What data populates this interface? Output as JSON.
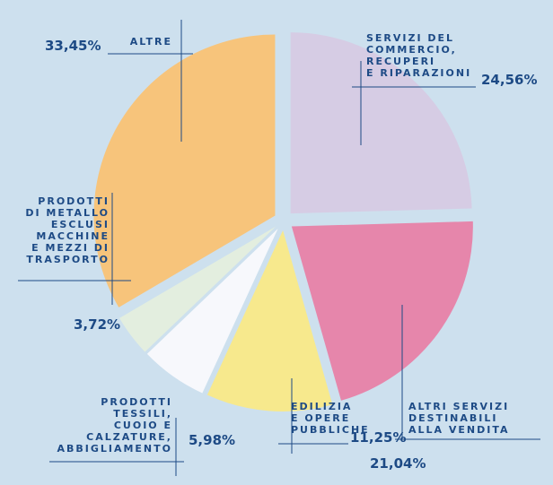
{
  "chart_data": {
    "type": "pie",
    "categories": [
      "SERVIZI DEL\nCOMMERCIO,\nRECUPERI\nE RIPARAZIONI",
      "ALTRI SERVIZI\nDESTINABILI\nALLA VENDITA",
      "EDILIZIA\nE OPERE\nPUBBLICHE",
      "PRODOTTI\nTESSILI,\nCUOIO E\nCALZATURE,\nABBIGLIAMENTO",
      "PRODOTTI\nDI METALLO\nESCLUSI\nMACCHINE\nE MEZZI DI\nTRASPORTO",
      "ALTRE"
    ],
    "values": [
      24.56,
      21.04,
      11.25,
      5.98,
      3.72,
      33.45
    ],
    "value_labels": [
      "24,56%",
      "21,04%",
      "11,25%",
      "5,98%",
      "3,72%",
      "33,45%"
    ],
    "colors": [
      "#d6cce4",
      "#e686ab",
      "#f7e98d",
      "#f7f8fc",
      "#e3eedf",
      "#f7c47b"
    ]
  }
}
